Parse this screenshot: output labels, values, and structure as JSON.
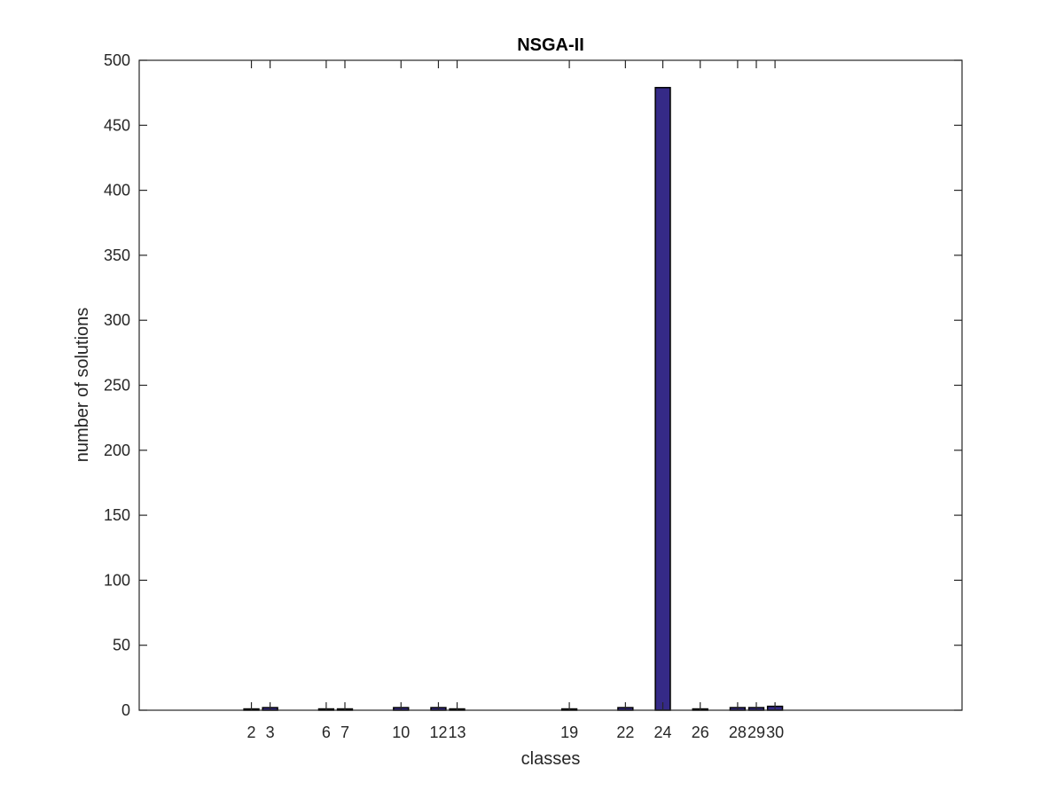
{
  "chart_data": {
    "type": "bar",
    "title": "NSGA-II",
    "xlabel": "classes",
    "ylabel": "number of solutions",
    "xlim": [
      -4,
      40
    ],
    "ylim": [
      0,
      500
    ],
    "x": [
      2,
      3,
      6,
      7,
      10,
      12,
      13,
      19,
      22,
      24,
      26,
      28,
      29,
      30
    ],
    "values": [
      1,
      2,
      1,
      1,
      2,
      2,
      1,
      1,
      2,
      479,
      1,
      2,
      2,
      3
    ],
    "x_ticks": [
      2,
      3,
      6,
      7,
      10,
      12,
      13,
      19,
      22,
      24,
      26,
      28,
      29,
      30
    ],
    "x_tick_labels": [
      "2",
      "3",
      "6",
      "7",
      "10",
      "12",
      "13",
      "19",
      "22",
      "24",
      "26",
      "28",
      "29",
      "30"
    ],
    "y_ticks": [
      0,
      50,
      100,
      150,
      200,
      250,
      300,
      350,
      400,
      450,
      500
    ],
    "y_tick_labels": [
      "0",
      "50",
      "100",
      "150",
      "200",
      "250",
      "300",
      "350",
      "400",
      "450",
      "500"
    ],
    "bar_color": "#352a87",
    "grid": false,
    "legend": "none"
  }
}
